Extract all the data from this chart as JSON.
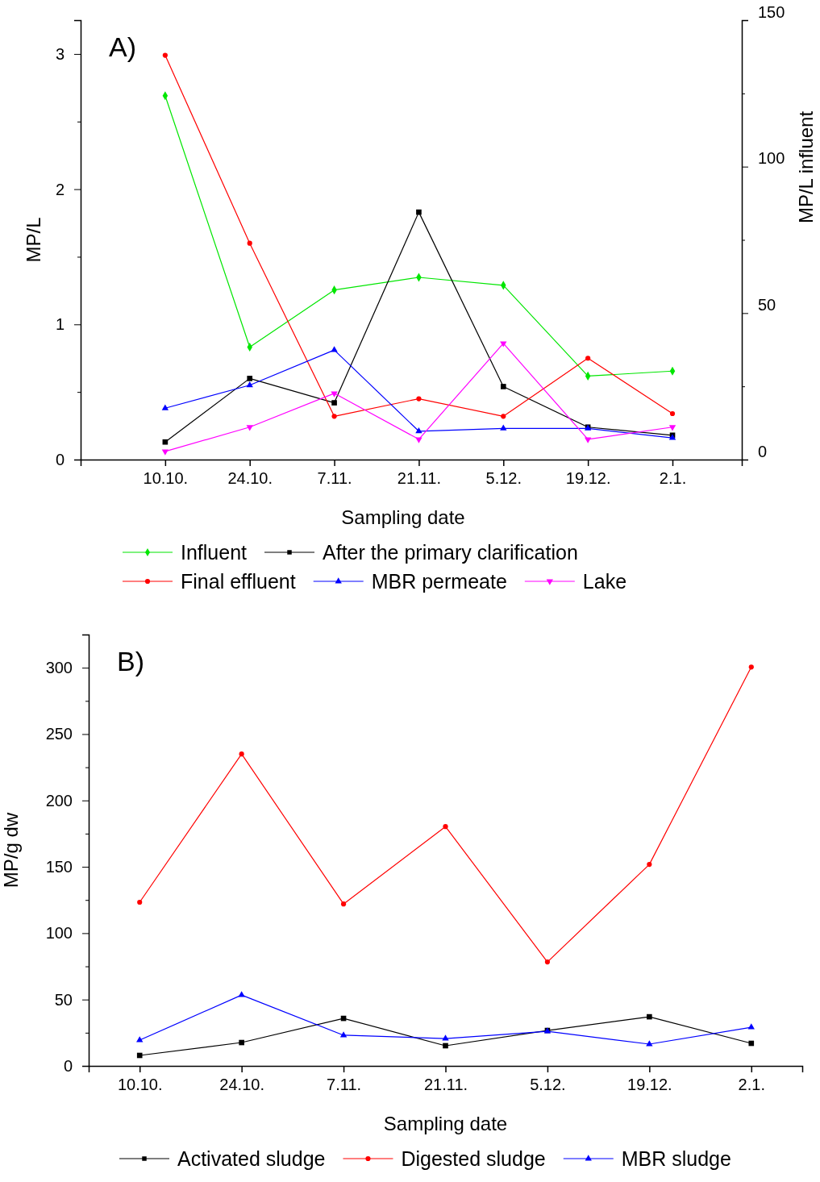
{
  "chart_data": [
    {
      "type": "line",
      "annotations": [
        "A)"
      ],
      "xlabel": "Sampling date",
      "ylabel": "MP/L",
      "y2label": "MP/L influent",
      "categories": [
        "10.10.",
        "24.10.",
        "7.11.",
        "21.11.",
        "5.12.",
        "19.12.",
        "2.1."
      ],
      "ylim": [
        0,
        3.25
      ],
      "yticks": [
        0,
        {
          "value": 0.5,
          "label": null
        },
        1,
        {
          "value": 1.5,
          "label": null
        },
        2,
        {
          "value": 2.5,
          "label": null
        },
        3
      ],
      "y2lim": [
        0,
        150
      ],
      "y2ticks": [
        0,
        {
          "value": 25,
          "label": null
        },
        50,
        {
          "value": 75,
          "label": null
        },
        100,
        {
          "value": 125,
          "label": null
        },
        150
      ],
      "grid": false,
      "legend": "bottom",
      "line_style": "solid",
      "series": [
        {
          "name": "Influent",
          "color": "#00e600",
          "marker": "diamond",
          "axis": "y2",
          "values": [
            124.2,
            38.4,
            57.9,
            62.2,
            59.5,
            28.5,
            30.2
          ]
        },
        {
          "name": "After the primary clarification",
          "color": "#000000",
          "marker": "square",
          "values": [
            0.13,
            0.6,
            0.42,
            1.83,
            0.54,
            0.24,
            0.18
          ]
        },
        {
          "name": "Final effluent",
          "color": "#ff0000",
          "marker": "circle",
          "values": [
            2.99,
            1.6,
            0.32,
            0.45,
            0.32,
            0.75,
            0.34
          ]
        },
        {
          "name": "MBR permeate",
          "color": "#0000ff",
          "marker": "triangle",
          "values": [
            0.38,
            0.55,
            0.81,
            0.21,
            0.23,
            0.23,
            0.16
          ]
        },
        {
          "name": "Lake",
          "color": "#ff00ff",
          "marker": "triangle-down",
          "values": [
            0.06,
            0.24,
            0.49,
            0.15,
            0.86,
            0.15,
            0.24
          ]
        }
      ]
    },
    {
      "type": "line",
      "annotations": [
        "B)"
      ],
      "xlabel": "Sampling date",
      "ylabel": "MP/g dw",
      "categories": [
        "10.10.",
        "24.10.",
        "7.11.",
        "21.11.",
        "5.12.",
        "19.12.",
        "2.1."
      ],
      "ylim": [
        0,
        325
      ],
      "yticks": [
        0,
        {
          "value": 25,
          "label": null
        },
        50,
        {
          "value": 75,
          "label": null
        },
        100,
        {
          "value": 125,
          "label": null
        },
        150,
        {
          "value": 175,
          "label": null
        },
        200,
        {
          "value": 225,
          "label": null
        },
        250,
        {
          "value": 275,
          "label": null
        },
        300
      ],
      "grid": false,
      "legend": "bottom",
      "line_style": "solid",
      "series": [
        {
          "name": "Activated sludge",
          "color": "#000000",
          "marker": "square",
          "values": [
            7.9,
            17.6,
            35.8,
            15.2,
            26.7,
            37,
            17
          ]
        },
        {
          "name": "Digested sludge",
          "color": "#ff0000",
          "marker": "circle",
          "values": [
            123.3,
            235,
            122,
            180.3,
            78.3,
            151.8,
            300.5
          ]
        },
        {
          "name": "MBR sludge",
          "color": "#0000ff",
          "marker": "triangle",
          "values": [
            19.4,
            53.4,
            23.1,
            20.6,
            26.1,
            16.4,
            29.1
          ]
        }
      ]
    }
  ]
}
